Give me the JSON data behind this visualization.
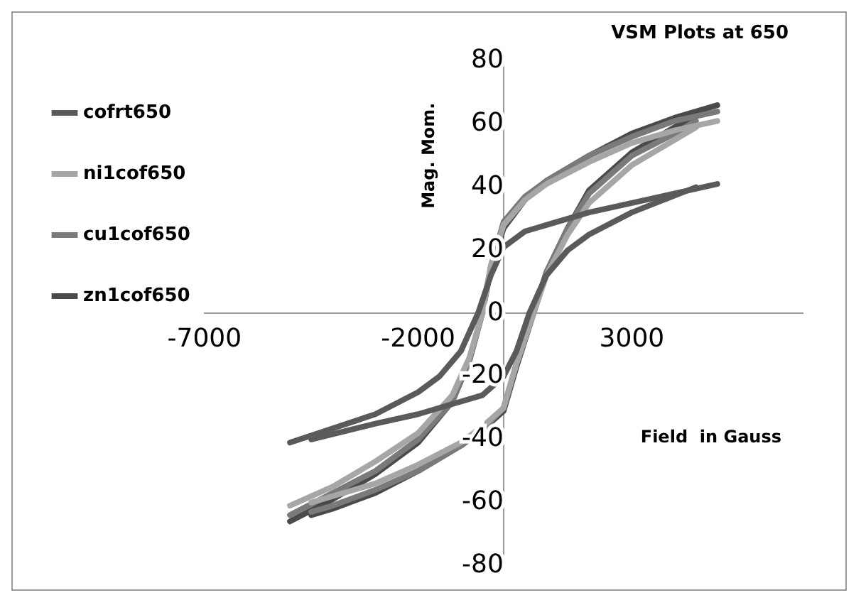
{
  "chart_data": {
    "type": "line",
    "title": "VSM Plots at 650",
    "xlabel": "Field  in Gauss",
    "ylabel": "Mag. Mom.",
    "xlim": [
      -7000,
      7000
    ],
    "xticks": [
      -7000,
      -2000,
      3000
    ],
    "ylim": [
      -80,
      80
    ],
    "yticks": [
      -80,
      -60,
      -40,
      -20,
      0,
      20,
      40,
      60,
      80
    ],
    "grid": false,
    "legend": "left",
    "marker": "none",
    "series": [
      {
        "name": "cofrt650",
        "color": "#5a5a5a",
        "x": [
          -5000,
          -3000,
          -2000,
          -1500,
          -1000,
          -600,
          -300,
          0,
          500,
          1000,
          2000,
          3000,
          5000
        ],
        "values": [
          -41,
          -32,
          -25,
          -20,
          -12,
          0,
          12,
          21,
          26,
          28,
          32,
          35,
          41
        ]
      },
      {
        "color": "#5a5a5a",
        "x": [
          -4500,
          -3000,
          -2000,
          -1000,
          -500,
          0,
          300,
          600,
          1000,
          1500,
          2000,
          3000,
          4500
        ],
        "values": [
          -40,
          -35,
          -32,
          -28,
          -26,
          -20,
          -12,
          0,
          12,
          20,
          25,
          32,
          40
        ]
      },
      {
        "name": "ni1cof650",
        "color": "#a6a6a6",
        "x": [
          -5000,
          -4000,
          -3000,
          -2000,
          -1200,
          -800,
          -500,
          -300,
          0,
          500,
          1000,
          2000,
          3000,
          4000,
          5000
        ],
        "values": [
          -61,
          -55,
          -47,
          -38,
          -26,
          -14,
          0,
          15,
          28,
          36,
          41,
          48,
          54,
          58,
          61
        ]
      },
      {
        "color": "#a6a6a6",
        "x": [
          -4500,
          -4000,
          -3000,
          -2000,
          -1000,
          -500,
          0,
          300,
          700,
          1000,
          1500,
          2000,
          3000,
          4000,
          4500
        ],
        "values": [
          -60,
          -58,
          -54,
          -48,
          -41,
          -36,
          -30,
          -16,
          0,
          12,
          25,
          35,
          47,
          55,
          59
        ]
      },
      {
        "name": "cu1cof650",
        "color": "#7a7a7a",
        "x": [
          -5000,
          -4000,
          -3000,
          -2000,
          -1200,
          -800,
          -500,
          -300,
          0,
          500,
          1000,
          2000,
          3000,
          4000,
          5000
        ],
        "values": [
          -64,
          -57,
          -50,
          -40,
          -28,
          -15,
          0,
          15,
          29,
          37,
          42,
          50,
          56,
          61,
          64
        ]
      },
      {
        "color": "#7a7a7a",
        "x": [
          -4500,
          -4000,
          -3000,
          -2000,
          -1000,
          -500,
          0,
          300,
          700,
          1000,
          1500,
          2000,
          3000,
          4000,
          4500
        ],
        "values": [
          -63,
          -61,
          -56,
          -50,
          -42,
          -37,
          -30,
          -16,
          0,
          13,
          27,
          38,
          50,
          57,
          61
        ]
      },
      {
        "name": "zn1cof650",
        "color": "#4a4a4a",
        "x": [
          -5000,
          -4000,
          -3000,
          -2000,
          -1200,
          -800,
          -500,
          -300,
          0,
          500,
          1000,
          2000,
          3000,
          4000,
          5000
        ],
        "values": [
          -66,
          -59,
          -51,
          -41,
          -28,
          -15,
          0,
          14,
          27,
          36,
          42,
          50,
          57,
          62,
          66
        ]
      },
      {
        "color": "#4a4a4a",
        "x": [
          -4500,
          -4000,
          -3000,
          -2000,
          -1000,
          -500,
          0,
          300,
          700,
          1000,
          1500,
          2000,
          3000,
          4000,
          4500
        ],
        "values": [
          -64,
          -62,
          -57,
          -50,
          -42,
          -37,
          -31,
          -17,
          0,
          13,
          27,
          39,
          51,
          59,
          63
        ]
      }
    ]
  }
}
